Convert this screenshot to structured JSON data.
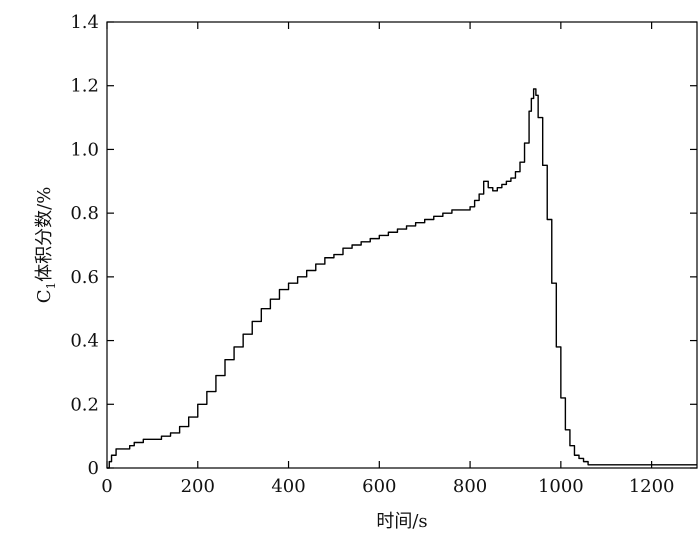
{
  "chart_data": {
    "type": "line",
    "title": "",
    "xlabel": "时间/s",
    "ylabel": {
      "main": "C",
      "subscript": "1",
      "rest": "体积分数/%"
    },
    "xlim": [
      0,
      1300
    ],
    "ylim": [
      0,
      1.4
    ],
    "xticks": [
      0,
      200,
      400,
      600,
      800,
      1000,
      1200
    ],
    "xtick_labels": [
      "0",
      "200",
      "400",
      "600",
      "800",
      "1000",
      "1200"
    ],
    "yticks": [
      0,
      0.2,
      0.4,
      0.6,
      0.8,
      1.0,
      1.2,
      1.4
    ],
    "ytick_labels": [
      "0",
      "0.2",
      "0.4",
      "0.6",
      "0.8",
      "1.0",
      "1.2",
      "1.4"
    ],
    "grid": false,
    "series": [
      {
        "color": "#000000",
        "step": true,
        "x": [
          0,
          5,
          10,
          20,
          30,
          50,
          60,
          80,
          100,
          120,
          140,
          160,
          180,
          200,
          220,
          240,
          260,
          280,
          300,
          320,
          340,
          360,
          380,
          400,
          420,
          440,
          460,
          480,
          500,
          520,
          540,
          560,
          580,
          600,
          620,
          640,
          660,
          680,
          700,
          720,
          740,
          760,
          780,
          800,
          810,
          820,
          830,
          840,
          850,
          860,
          870,
          880,
          890,
          900,
          910,
          920,
          930,
          935,
          940,
          945,
          950,
          960,
          970,
          980,
          990,
          1000,
          1010,
          1020,
          1030,
          1040,
          1050,
          1060,
          1070,
          1080,
          1100,
          1200,
          1300
        ],
        "y": [
          0.0,
          0.02,
          0.04,
          0.06,
          0.06,
          0.07,
          0.08,
          0.09,
          0.09,
          0.1,
          0.11,
          0.13,
          0.16,
          0.2,
          0.24,
          0.29,
          0.34,
          0.38,
          0.42,
          0.46,
          0.5,
          0.53,
          0.56,
          0.58,
          0.6,
          0.62,
          0.64,
          0.66,
          0.67,
          0.69,
          0.7,
          0.71,
          0.72,
          0.73,
          0.74,
          0.75,
          0.76,
          0.77,
          0.78,
          0.79,
          0.8,
          0.81,
          0.81,
          0.82,
          0.84,
          0.86,
          0.9,
          0.88,
          0.87,
          0.88,
          0.89,
          0.9,
          0.91,
          0.93,
          0.96,
          1.02,
          1.12,
          1.16,
          1.19,
          1.17,
          1.1,
          0.95,
          0.78,
          0.58,
          0.38,
          0.22,
          0.12,
          0.07,
          0.04,
          0.03,
          0.02,
          0.01,
          0.01,
          0.01,
          0.01,
          0.01,
          0.01
        ]
      }
    ]
  }
}
